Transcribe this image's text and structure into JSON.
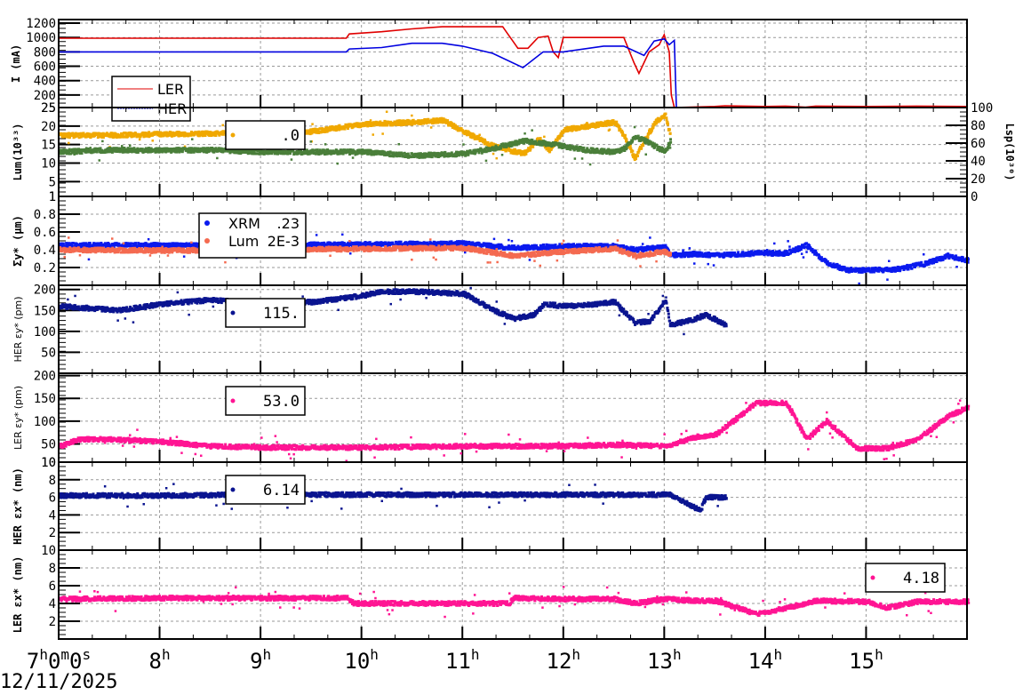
{
  "date": "12/11/2025",
  "x_axis": {
    "start_hour": 7,
    "end_hour": 16,
    "ticks": [
      {
        "hour": 7,
        "label_main": "7",
        "label_sup": "h",
        "label_rest": "0",
        "label_sup2": "m",
        "label_rest2": "0",
        "label_sup3": "s"
      },
      {
        "hour": 8,
        "label_main": "8",
        "label_sup": "h"
      },
      {
        "hour": 9,
        "label_main": "9",
        "label_sup": "h"
      },
      {
        "hour": 10,
        "label_main": "10",
        "label_sup": "h"
      },
      {
        "hour": 11,
        "label_main": "11",
        "label_sup": "h"
      },
      {
        "hour": 12,
        "label_main": "12",
        "label_sup": "h"
      },
      {
        "hour": 13,
        "label_main": "13",
        "label_sup": "h"
      },
      {
        "hour": 14,
        "label_main": "14",
        "label_sup": "h"
      },
      {
        "hour": 15,
        "label_main": "15",
        "label_sup": "h"
      }
    ]
  },
  "colors": {
    "ler_current": "#e00000",
    "her_current": "#0000e0",
    "lum_orange": "#f0a800",
    "lum_green": "#4a7f3a",
    "xrm_blue": "#0a1aee",
    "lum_salmon": "#f46a50",
    "her_navy": "#0a1490",
    "ler_pink": "#ff1493",
    "grid": "#999999"
  },
  "chart_data": [
    {
      "type": "line",
      "panel": "beam-current",
      "ylabel": "I (mA)",
      "yticks": [
        25,
        200,
        400,
        600,
        800,
        1000,
        1200
      ],
      "ylim": [
        25,
        1250
      ],
      "legend": [
        {
          "name": "LER",
          "color": "#e00000"
        },
        {
          "name": "HER",
          "color": "#0000e0"
        }
      ],
      "series": [
        {
          "name": "LER",
          "color": "#e00000",
          "x": [
            7.0,
            9.85,
            9.88,
            10.2,
            10.5,
            10.8,
            11.4,
            11.45,
            11.5,
            11.55,
            11.65,
            11.75,
            11.85,
            11.9,
            11.95,
            12.0,
            12.6,
            12.7,
            12.75,
            12.85,
            12.95,
            13.0,
            13.05,
            13.07,
            13.1,
            13.1,
            13.5,
            13.6,
            14.0,
            14.2,
            14.4,
            14.5,
            15.0,
            15.5,
            16.0
          ],
          "y": [
            990,
            990,
            1050,
            1080,
            1120,
            1150,
            1150,
            1050,
            950,
            850,
            850,
            1000,
            1020,
            800,
            720,
            1000,
            1000,
            650,
            500,
            800,
            900,
            1040,
            800,
            200,
            25,
            25,
            40,
            50,
            40,
            45,
            30,
            45,
            40,
            45,
            40
          ]
        },
        {
          "name": "HER",
          "color": "#0000e0",
          "x": [
            7.0,
            9.85,
            9.88,
            10.2,
            10.5,
            10.8,
            11.0,
            11.3,
            11.6,
            11.8,
            12.0,
            12.4,
            12.6,
            12.8,
            12.9,
            13.0,
            13.05,
            13.1,
            13.12,
            13.13,
            14.0,
            14.5,
            15.0,
            16.0
          ],
          "y": [
            800,
            800,
            840,
            860,
            920,
            920,
            880,
            780,
            580,
            800,
            800,
            880,
            880,
            750,
            950,
            980,
            900,
            960,
            25,
            25,
            25,
            25,
            25,
            25
          ]
        }
      ]
    },
    {
      "type": "scatter",
      "panel": "luminosity",
      "ylabel": "Lum(10^33)",
      "ylabel_right": "Lsp(10^30)",
      "yticks": [
        1,
        5,
        10,
        15,
        20,
        25
      ],
      "ylim": [
        1,
        25
      ],
      "yticks_right": [
        0,
        20,
        40,
        60,
        80,
        100
      ],
      "ylim_right": [
        0,
        100
      ],
      "legend_value": ".0",
      "series": [
        {
          "name": "Lum",
          "color": "#f0a800",
          "x": [
            7.0,
            7.5,
            8.0,
            8.5,
            9.0,
            9.5,
            10.0,
            10.5,
            10.8,
            11.0,
            11.3,
            11.6,
            11.75,
            11.85,
            12.0,
            12.5,
            12.6,
            12.7,
            12.75,
            12.9,
            13.0,
            13.05
          ],
          "y": [
            17.5,
            17.5,
            17.8,
            18.0,
            18.2,
            18.5,
            20.5,
            21.0,
            21.5,
            18.5,
            14.5,
            12.5,
            16.5,
            13.5,
            19.0,
            21.0,
            17.0,
            11.0,
            14.0,
            21.0,
            23.0,
            17.5
          ]
        },
        {
          "name": "Lsp",
          "color": "#4a7f3a",
          "x": [
            7.0,
            7.5,
            8.0,
            8.5,
            9.0,
            9.5,
            10.0,
            10.5,
            11.0,
            11.3,
            11.6,
            11.9,
            12.2,
            12.5,
            12.6,
            12.7,
            12.8,
            13.0,
            13.05
          ],
          "y": [
            13.0,
            13.5,
            13.5,
            13.5,
            13.0,
            13.0,
            13.0,
            12.0,
            12.5,
            14.0,
            16.0,
            15.0,
            13.5,
            13.0,
            14.0,
            17.0,
            16.0,
            13.0,
            16.0
          ]
        }
      ]
    },
    {
      "type": "scatter",
      "panel": "vertical-beam-size",
      "ylabel": "Σy* (μm)",
      "yticks": [
        0.2,
        0.4,
        0.6,
        0.8,
        1.0
      ],
      "ylim": [
        0.0,
        1.0
      ],
      "legend": [
        {
          "name": "XRM",
          "value": ".23",
          "color": "#0a1aee"
        },
        {
          "name": "Lum",
          "value": "2E-3",
          "color": "#f46a50"
        }
      ],
      "series": [
        {
          "name": "XRM",
          "color": "#0a1aee",
          "x": [
            7.0,
            8.0,
            9.0,
            10.0,
            11.0,
            11.5,
            12.0,
            12.5,
            12.7,
            13.0,
            13.05,
            13.3,
            13.5,
            13.6,
            13.9,
            14.2,
            14.4,
            14.6,
            14.8,
            15.0,
            15.3,
            15.6,
            15.8,
            16.0
          ],
          "y": [
            0.45,
            0.45,
            0.45,
            0.46,
            0.47,
            0.42,
            0.44,
            0.44,
            0.4,
            0.43,
            0.34,
            0.35,
            0.34,
            0.34,
            0.36,
            0.36,
            0.45,
            0.25,
            0.17,
            0.17,
            0.18,
            0.25,
            0.33,
            0.28
          ]
        },
        {
          "name": "Lum",
          "color": "#f46a50",
          "x": [
            7.0,
            8.0,
            9.0,
            10.0,
            11.0,
            11.5,
            12.0,
            12.5,
            12.7,
            13.0,
            13.05
          ],
          "y": [
            0.4,
            0.39,
            0.4,
            0.41,
            0.42,
            0.33,
            0.38,
            0.41,
            0.33,
            0.38,
            0.34
          ]
        }
      ]
    },
    {
      "type": "scatter",
      "panel": "her-vertical-emittance",
      "ylabel": "HER εy* (pm)",
      "yticks": [
        50,
        100,
        150,
        200
      ],
      "ylim": [
        0,
        210
      ],
      "legend_value": "115.",
      "series": [
        {
          "name": "HER εy*",
          "color": "#0a1490",
          "x": [
            7.0,
            7.3,
            7.6,
            8.0,
            8.5,
            9.0,
            9.5,
            10.0,
            10.2,
            10.5,
            11.0,
            11.3,
            11.5,
            11.7,
            11.8,
            12.0,
            12.3,
            12.5,
            12.7,
            12.85,
            13.0,
            13.05,
            13.3,
            13.4,
            13.6
          ],
          "y": [
            160,
            155,
            150,
            165,
            175,
            165,
            170,
            185,
            195,
            195,
            190,
            150,
            130,
            140,
            165,
            160,
            165,
            170,
            120,
            125,
            175,
            115,
            130,
            140,
            115
          ]
        }
      ]
    },
    {
      "type": "scatter",
      "panel": "ler-vertical-emittance",
      "ylabel": "LER εy* (pm)",
      "yticks": [
        10,
        50,
        100,
        150,
        200
      ],
      "ylim": [
        10,
        205
      ],
      "legend_value": "53.0",
      "series": [
        {
          "name": "LER εy*",
          "color": "#ff1493",
          "x": [
            7.0,
            7.2,
            7.5,
            8.0,
            8.5,
            9.0,
            10.0,
            11.0,
            12.0,
            12.5,
            13.0,
            13.3,
            13.5,
            13.9,
            14.2,
            14.4,
            14.6,
            14.9,
            15.2,
            15.5,
            15.8,
            16.0
          ],
          "y": [
            45,
            60,
            60,
            55,
            45,
            42,
            42,
            45,
            45,
            48,
            45,
            65,
            70,
            140,
            140,
            60,
            100,
            40,
            40,
            60,
            110,
            130
          ]
        }
      ]
    },
    {
      "type": "scatter",
      "panel": "her-horizontal-emittance",
      "ylabel": "HER εx* (nm)",
      "yticks": [
        2,
        4,
        6,
        8,
        10
      ],
      "ylim": [
        0,
        10
      ],
      "legend_value": "6.14",
      "series": [
        {
          "name": "HER εx*",
          "color": "#0a1490",
          "x": [
            7.0,
            8.0,
            9.0,
            10.0,
            11.0,
            12.0,
            13.05,
            13.35,
            13.4,
            13.6
          ],
          "y": [
            6.2,
            6.2,
            6.3,
            6.3,
            6.3,
            6.3,
            6.3,
            4.5,
            6.0,
            6.0
          ]
        }
      ]
    },
    {
      "type": "scatter",
      "panel": "ler-horizontal-emittance",
      "ylabel": "LER εx* (nm)",
      "yticks": [
        2,
        4,
        6,
        8,
        10
      ],
      "ylim": [
        0,
        10
      ],
      "legend_value": "4.18",
      "series": [
        {
          "name": "LER εx*",
          "color": "#ff1493",
          "x": [
            7.0,
            8.0,
            9.0,
            9.85,
            9.9,
            10.5,
            11.0,
            11.45,
            11.5,
            12.0,
            12.5,
            12.7,
            13.0,
            13.3,
            13.5,
            13.9,
            14.2,
            14.5,
            15.0,
            15.2,
            15.5,
            16.0
          ],
          "y": [
            4.5,
            4.6,
            4.6,
            4.6,
            4.0,
            4.0,
            4.0,
            4.0,
            4.6,
            4.5,
            4.5,
            4.0,
            4.5,
            4.3,
            4.3,
            2.8,
            3.5,
            4.3,
            4.2,
            3.5,
            4.2,
            4.2
          ]
        }
      ]
    }
  ]
}
